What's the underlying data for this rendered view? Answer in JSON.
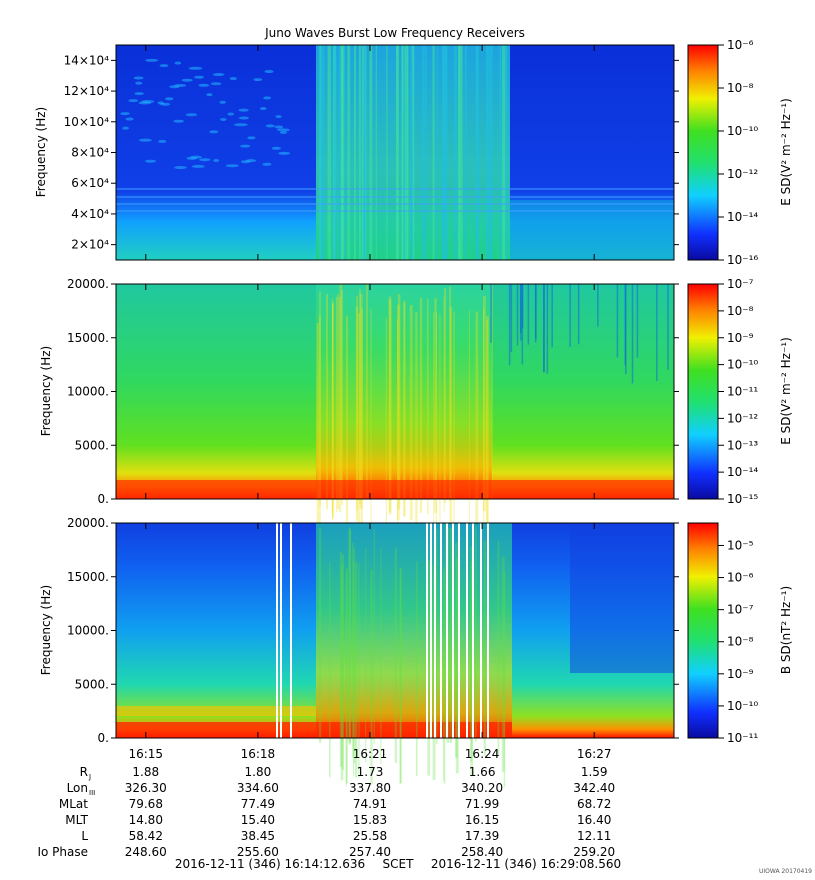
{
  "title": "Juno Waves Burst Low Frequency Receivers",
  "footer": {
    "start": "2016-12-11 (346) 16:14:12.636",
    "frame": "SCET",
    "end": "2016-12-11 (346) 16:29:08.560",
    "credit": "UIOWA 20170419"
  },
  "chart_data": [
    {
      "type": "heatmap",
      "panel": "top",
      "ylabel": "Frequency (Hz)",
      "ylim": [
        10000,
        150000
      ],
      "yticks": [
        "2×10⁴",
        "4×10⁴",
        "6×10⁴",
        "8×10⁴",
        "10×10⁴",
        "12×10⁴",
        "14×10⁴"
      ],
      "ytick_values": [
        20000,
        40000,
        60000,
        80000,
        100000,
        120000,
        140000
      ],
      "colorbar": {
        "label": "E SD(V² m⁻² Hz⁻¹)",
        "ticks": [
          "10⁻¹⁶",
          "10⁻¹⁴",
          "10⁻¹²",
          "10⁻¹⁰",
          "10⁻⁸",
          "10⁻⁶"
        ],
        "log_range": [
          -16,
          -6
        ]
      }
    },
    {
      "type": "heatmap",
      "panel": "middle",
      "ylabel": "Frequency (Hz)",
      "ylim": [
        0,
        20000
      ],
      "yticks": [
        "0.",
        "5000.",
        "10000.",
        "15000.",
        "20000."
      ],
      "ytick_values": [
        0,
        5000,
        10000,
        15000,
        20000
      ],
      "colorbar": {
        "label": "E SD(V² m⁻² Hz⁻¹)",
        "ticks": [
          "10⁻¹⁵",
          "10⁻¹⁴",
          "10⁻¹³",
          "10⁻¹²",
          "10⁻¹¹",
          "10⁻¹⁰",
          "10⁻⁹",
          "10⁻⁸",
          "10⁻⁷"
        ],
        "log_range": [
          -15,
          -7
        ]
      }
    },
    {
      "type": "heatmap",
      "panel": "bottom",
      "ylabel": "Frequency (Hz)",
      "ylim": [
        0,
        20000
      ],
      "yticks": [
        "0.",
        "5000.",
        "10000.",
        "15000.",
        "20000."
      ],
      "ytick_values": [
        0,
        5000,
        10000,
        15000,
        20000
      ],
      "colorbar": {
        "label": "B SD(nT² Hz⁻¹)",
        "ticks": [
          "10⁻¹¹",
          "10⁻¹⁰",
          "10⁻⁹",
          "10⁻⁸",
          "10⁻⁷",
          "10⁻⁶",
          "10⁻⁵"
        ],
        "log_range": [
          -11,
          -4.3
        ]
      }
    }
  ],
  "time_axis": {
    "labels": [
      "16:15",
      "16:18",
      "16:21",
      "16:24",
      "16:27"
    ],
    "start_seconds": 0,
    "positions_minutes": [
      0.797,
      3.797,
      6.797,
      9.797,
      12.797
    ],
    "span_minutes": 14.932
  },
  "ephemeris": {
    "rows": [
      {
        "label": "R",
        "sub": "J",
        "values": [
          "1.88",
          "1.80",
          "1.73",
          "1.66",
          "1.59"
        ]
      },
      {
        "label": "Lon",
        "sub": "III",
        "values": [
          "326.30",
          "334.60",
          "337.80",
          "340.20",
          "342.40"
        ]
      },
      {
        "label": "MLat",
        "sub": "",
        "values": [
          "79.68",
          "77.49",
          "74.91",
          "71.99",
          "68.72"
        ]
      },
      {
        "label": "MLT",
        "sub": "",
        "values": [
          "14.80",
          "15.40",
          "15.83",
          "16.15",
          "16.40"
        ]
      },
      {
        "label": "L",
        "sub": "",
        "values": [
          "58.42",
          "38.45",
          "25.58",
          "17.39",
          "12.11"
        ]
      },
      {
        "label": "Io Phase",
        "sub": "",
        "values": [
          "248.60",
          "255.60",
          "257.40",
          "258.40",
          "259.20"
        ]
      }
    ]
  }
}
